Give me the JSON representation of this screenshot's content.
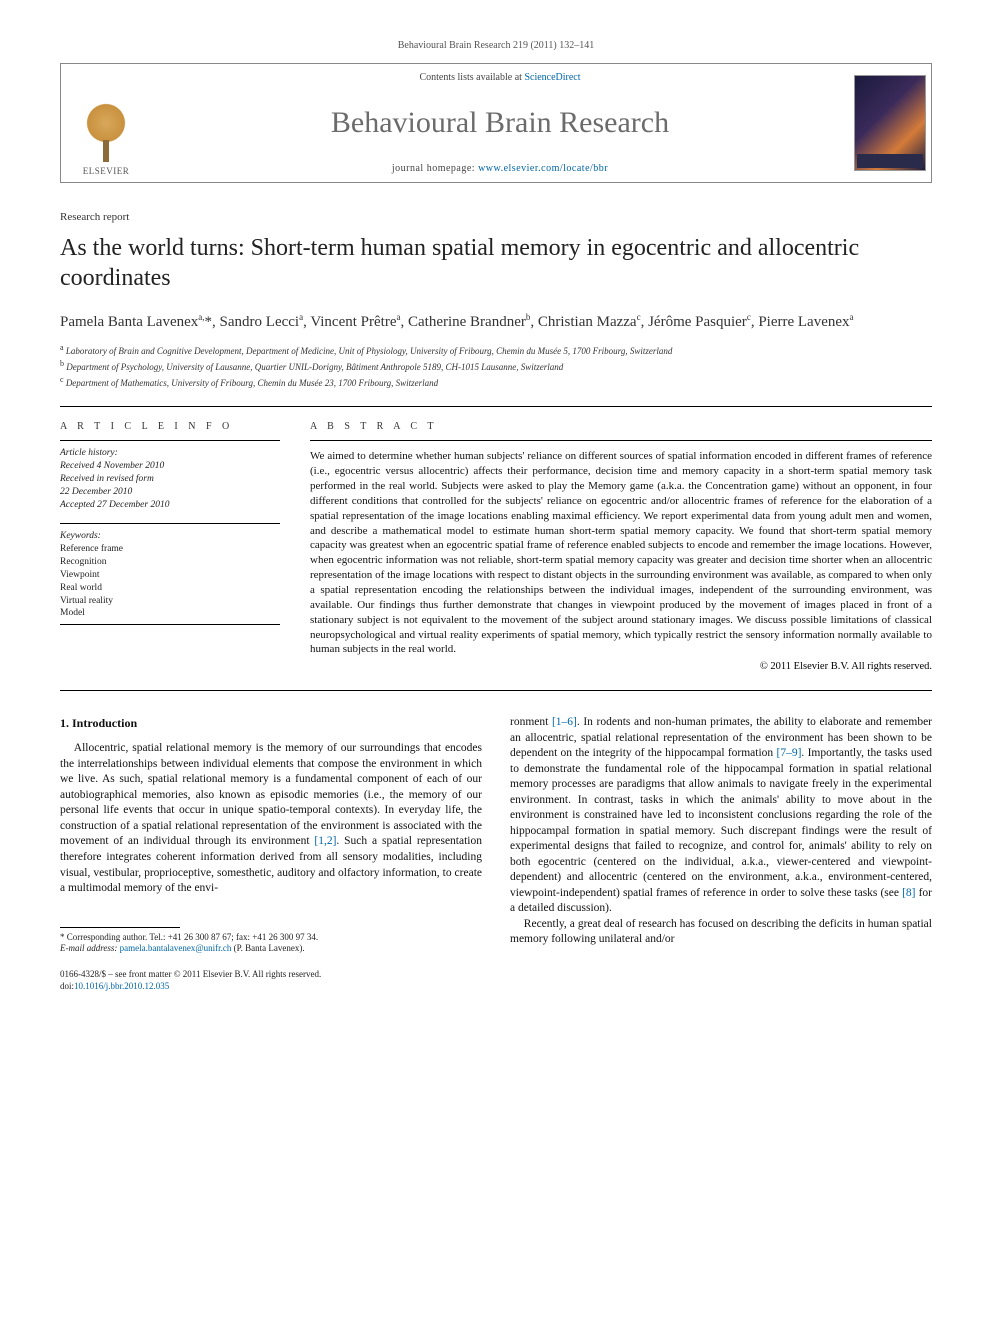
{
  "journal_ref": "Behavioural Brain Research 219 (2011) 132–141",
  "header": {
    "publisher_name": "ELSEVIER",
    "contents_prefix": "Contents lists available at ",
    "contents_link": "ScienceDirect",
    "journal_title": "Behavioural Brain Research",
    "homepage_prefix": "journal homepage: ",
    "homepage_link": "www.elsevier.com/locate/bbr"
  },
  "article": {
    "type": "Research report",
    "title": "As the world turns: Short-term human spatial memory in egocentric and allocentric coordinates",
    "authors_html": "Pamela Banta Lavenex<sup>a,</sup>*, Sandro Lecci<sup>a</sup>, Vincent Prêtre<sup>a</sup>, Catherine Brandner<sup>b</sup>, Christian Mazza<sup>c</sup>, Jérôme Pasquier<sup>c</sup>, Pierre Lavenex<sup>a</sup>",
    "affiliations": [
      "a Laboratory of Brain and Cognitive Development, Department of Medicine, Unit of Physiology, University of Fribourg, Chemin du Musée 5, 1700 Fribourg, Switzerland",
      "b Department of Psychology, University of Lausanne, Quartier UNIL-Dorigny, Bâtiment Anthropole 5189, CH-1015 Lausanne, Switzerland",
      "c Department of Mathematics, University of Fribourg, Chemin du Musée 23, 1700 Fribourg, Switzerland"
    ]
  },
  "info": {
    "heading": "A R T I C L E   I N F O",
    "history_label": "Article history:",
    "received": "Received 4 November 2010",
    "revised": "Received in revised form",
    "revised_date": "22 December 2010",
    "accepted": "Accepted 27 December 2010",
    "keywords_label": "Keywords:",
    "keywords": [
      "Reference frame",
      "Recognition",
      "Viewpoint",
      "Real world",
      "Virtual reality",
      "Model"
    ]
  },
  "abstract": {
    "heading": "A B S T R A C T",
    "text": "We aimed to determine whether human subjects' reliance on different sources of spatial information encoded in different frames of reference (i.e., egocentric versus allocentric) affects their performance, decision time and memory capacity in a short-term spatial memory task performed in the real world. Subjects were asked to play the Memory game (a.k.a. the Concentration game) without an opponent, in four different conditions that controlled for the subjects' reliance on egocentric and/or allocentric frames of reference for the elaboration of a spatial representation of the image locations enabling maximal efficiency. We report experimental data from young adult men and women, and describe a mathematical model to estimate human short-term spatial memory capacity. We found that short-term spatial memory capacity was greatest when an egocentric spatial frame of reference enabled subjects to encode and remember the image locations. However, when egocentric information was not reliable, short-term spatial memory capacity was greater and decision time shorter when an allocentric representation of the image locations with respect to distant objects in the surrounding environment was available, as compared to when only a spatial representation encoding the relationships between the individual images, independent of the surrounding environment, was available. Our findings thus further demonstrate that changes in viewpoint produced by the movement of images placed in front of a stationary subject is not equivalent to the movement of the subject around stationary images. We discuss possible limitations of classical neuropsychological and virtual reality experiments of spatial memory, which typically restrict the sensory information normally available to human subjects in the real world.",
    "copyright": "© 2011 Elsevier B.V. All rights reserved."
  },
  "body": {
    "section_number": "1.",
    "section_title": "Introduction",
    "col1_p1a": "Allocentric, spatial relational memory is the memory of our surroundings that encodes the interrelationships between individual elements that compose the environment in which we live. As such, spatial relational memory is a fundamental component of each of our autobiographical memories, also known as episodic memories (i.e., the memory of our personal life events that occur in unique spatio-temporal contexts). In everyday life, the construction of a spatial relational representation of the environment is associated with the movement of an individual through its environment ",
    "ref_1_2": "[1,2]",
    "col1_p1b": ". Such a spatial representation therefore integrates coherent information derived from all sensory modalities, including visual, vestibular, proprioceptive, somesthetic, auditory and olfactory information, to create a multimodal memory of the envi-",
    "col2_p1a": "ronment ",
    "ref_1_6": "[1–6]",
    "col2_p1b": ". In rodents and non-human primates, the ability to elaborate and remember an allocentric, spatial relational representation of the environment has been shown to be dependent on the integrity of the hippocampal formation ",
    "ref_7_9": "[7–9]",
    "col2_p1c": ". Importantly, the tasks used to demonstrate the fundamental role of the hippocampal formation in spatial relational memory processes are paradigms that allow animals to navigate freely in the experimental environment. In contrast, tasks in which the animals' ability to move about in the environment is constrained have led to inconsistent conclusions regarding the role of the hippocampal formation in spatial memory. Such discrepant findings were the result of experimental designs that failed to recognize, and control for, animals' ability to rely on both egocentric (centered on the individual, a.k.a., viewer-centered and viewpoint-dependent) and allocentric (centered on the environment, a.k.a., environment-centered, viewpoint-independent) spatial frames of reference in order to solve these tasks (see ",
    "ref_8": "[8]",
    "col2_p1d": " for a detailed discussion).",
    "col2_p2": "Recently, a great deal of research has focused on describing the deficits in human spatial memory following unilateral and/or"
  },
  "footnote": {
    "corresp_label": "* Corresponding author. Tel.: +41 26 300 87 67; fax: +41 26 300 97 34.",
    "email_label": "E-mail address: ",
    "email": "pamela.bantalavenex@unifr.ch",
    "email_suffix": " (P. Banta Lavenex)."
  },
  "footer": {
    "issn_line": "0166-4328/$ – see front matter © 2011 Elsevier B.V. All rights reserved.",
    "doi_prefix": "doi:",
    "doi": "10.1016/j.bbr.2010.12.035"
  },
  "colors": {
    "link": "#0066aa",
    "journal_title": "#6b6b6b",
    "text": "#111111"
  }
}
